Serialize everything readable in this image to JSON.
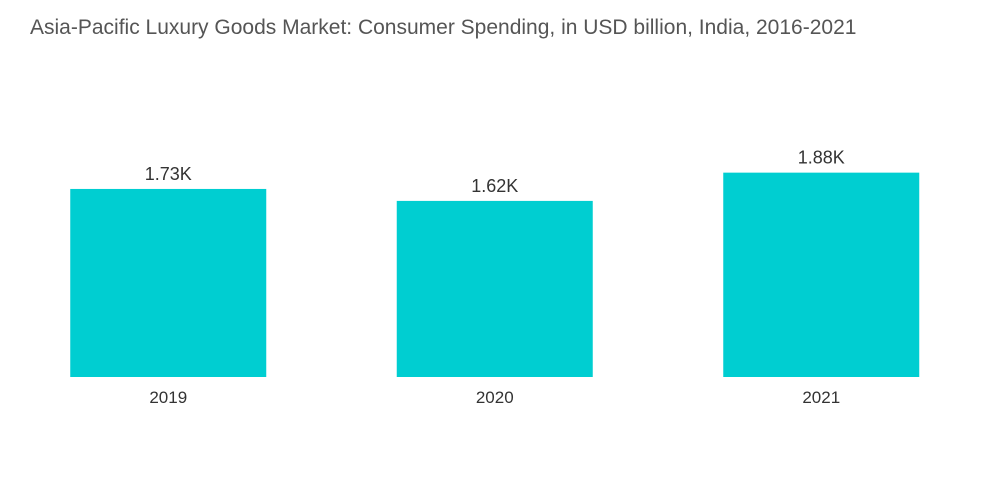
{
  "chart_data": {
    "type": "bar",
    "title": "Asia-Pacific Luxury Goods Market: Consumer Spending, in USD billion, India, 2016-2021",
    "categories": [
      "2019",
      "2020",
      "2021"
    ],
    "values": [
      1730,
      1620,
      1880
    ],
    "value_labels": [
      "1.73K",
      "1.62K",
      "1.88K"
    ],
    "xlabel": "",
    "ylabel": "",
    "ylim": [
      0,
      2000
    ],
    "grid": false,
    "legend": "none",
    "colors": {
      "bar": "#00CED1",
      "text": "#333333",
      "title": "#555555"
    }
  }
}
